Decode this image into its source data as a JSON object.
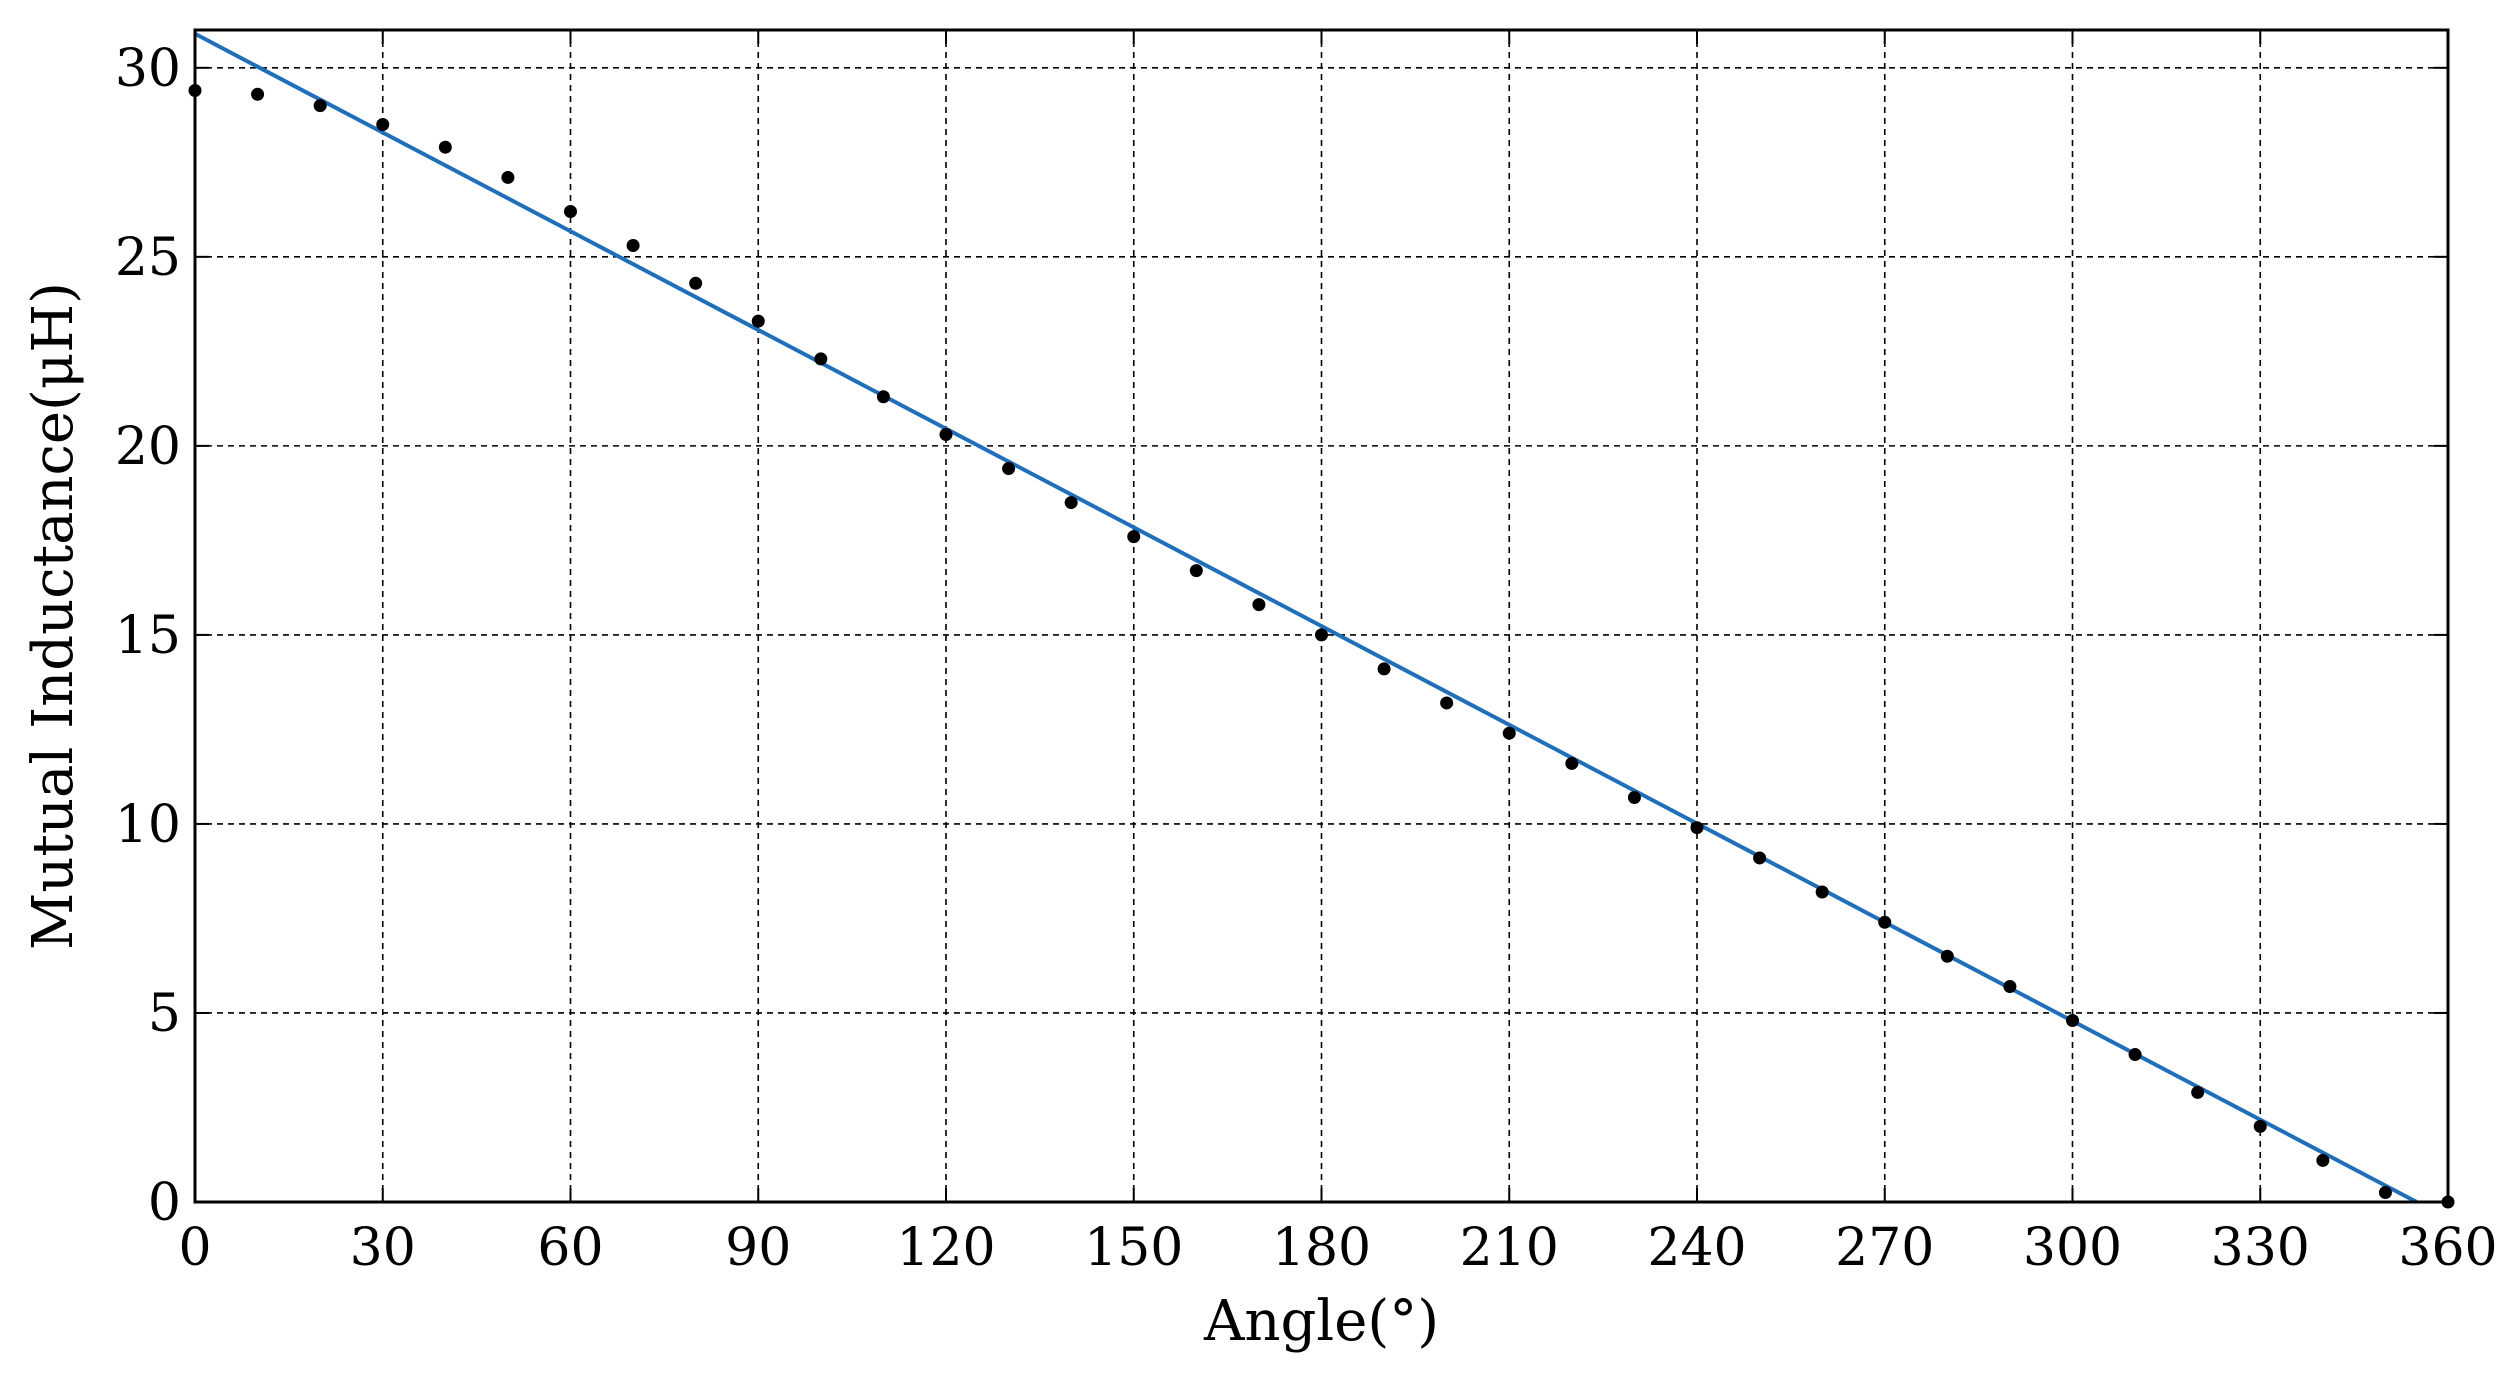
{
  "chart_data": {
    "type": "scatter",
    "title": "",
    "xlabel": "Angle(°)",
    "ylabel": "Mutual Inductance(μH)",
    "xlim": [
      0,
      360
    ],
    "ylim": [
      0,
      31
    ],
    "xticks": [
      0,
      30,
      60,
      90,
      120,
      150,
      180,
      210,
      240,
      270,
      300,
      330,
      360
    ],
    "yticks": [
      0,
      5,
      10,
      15,
      20,
      25,
      30
    ],
    "xtick_labels": [
      "0",
      "30",
      "60",
      "90",
      "120",
      "150",
      "180",
      "210",
      "240",
      "270",
      "300",
      "330",
      "360"
    ],
    "ytick_labels": [
      "0",
      "5",
      "10",
      "15",
      "20",
      "25",
      "30"
    ],
    "grid": true,
    "legend": "none",
    "series": [
      {
        "kind": "scatter",
        "color": "#000000",
        "x": [
          0,
          10,
          20,
          30,
          40,
          50,
          60,
          70,
          80,
          90,
          100,
          110,
          120,
          130,
          140,
          150,
          160,
          170,
          180,
          190,
          200,
          210,
          220,
          230,
          240,
          250,
          260,
          270,
          280,
          290,
          300,
          310,
          320,
          330,
          340,
          350,
          360
        ],
        "y": [
          29.4,
          29.3,
          29.0,
          28.5,
          27.9,
          27.1,
          26.2,
          25.3,
          24.3,
          23.3,
          22.3,
          21.3,
          20.3,
          19.4,
          18.5,
          17.6,
          16.7,
          15.8,
          15.0,
          14.1,
          13.2,
          12.4,
          11.6,
          10.7,
          9.9,
          9.1,
          8.2,
          7.4,
          6.5,
          5.7,
          4.8,
          3.9,
          2.9,
          2.0,
          1.1,
          0.25,
          0.0
        ]
      },
      {
        "kind": "line",
        "color": "#1f6fba",
        "x": [
          0,
          355
        ],
        "y": [
          30.9,
          0.0
        ]
      }
    ]
  }
}
